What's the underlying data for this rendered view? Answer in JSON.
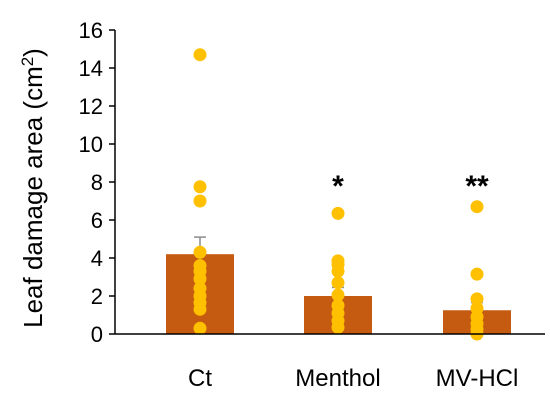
{
  "chart_data": {
    "type": "bar",
    "ylabel_main": "Leaf damage area (cm",
    "ylabel_sup": "2",
    "ylabel_close": ")",
    "ylim": [
      0,
      16
    ],
    "yticks": [
      "0",
      "2",
      "4",
      "6",
      "8",
      "10",
      "12",
      "14",
      "16"
    ],
    "categories": [
      "Ct",
      "Menthol",
      "MV-HCl"
    ],
    "values": [
      4.2,
      2.0,
      1.25
    ],
    "errors": [
      0.9,
      0.45,
      0.4
    ],
    "annotations": [
      "",
      "*",
      "**"
    ],
    "points": [
      [
        14.7,
        7.75,
        7.0,
        4.3,
        3.6,
        3.3,
        2.9,
        2.4,
        2.0,
        1.65,
        1.3,
        0.3
      ],
      [
        6.35,
        3.85,
        3.65,
        3.3,
        2.7,
        2.05,
        1.5,
        1.1,
        0.7,
        0.35
      ],
      [
        6.7,
        3.15,
        1.85,
        1.35,
        0.9,
        0.55,
        0.25,
        0.0
      ]
    ],
    "colors": {
      "bar": "#C55A11",
      "point": "#FFC000",
      "error": "#8c8c8c",
      "axis": "#000000"
    },
    "grid": false,
    "legend": "none"
  }
}
